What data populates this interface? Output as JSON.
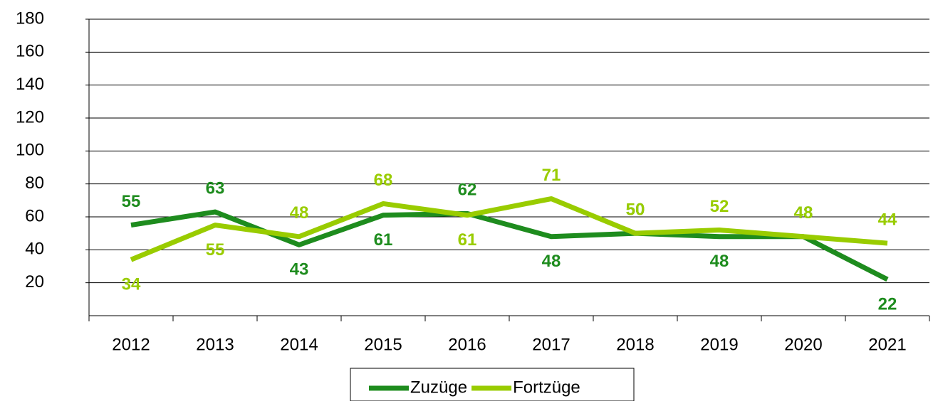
{
  "chart_data": {
    "type": "line",
    "categories": [
      "2012",
      "2013",
      "2014",
      "2015",
      "2016",
      "2017",
      "2018",
      "2019",
      "2020",
      "2021"
    ],
    "series": [
      {
        "name": "Zuzüge",
        "color": "#1e8c1e",
        "values": [
          55,
          63,
          43,
          61,
          62,
          48,
          50,
          48,
          48,
          22
        ]
      },
      {
        "name": "Fortzüge",
        "color": "#99cc00",
        "values": [
          34,
          55,
          48,
          68,
          61,
          71,
          50,
          52,
          48,
          44
        ]
      }
    ],
    "ylim": [
      0,
      180
    ],
    "yticks": [
      20,
      40,
      60,
      80,
      100,
      120,
      140,
      160,
      180
    ],
    "grid": true,
    "legend": "bottom"
  }
}
